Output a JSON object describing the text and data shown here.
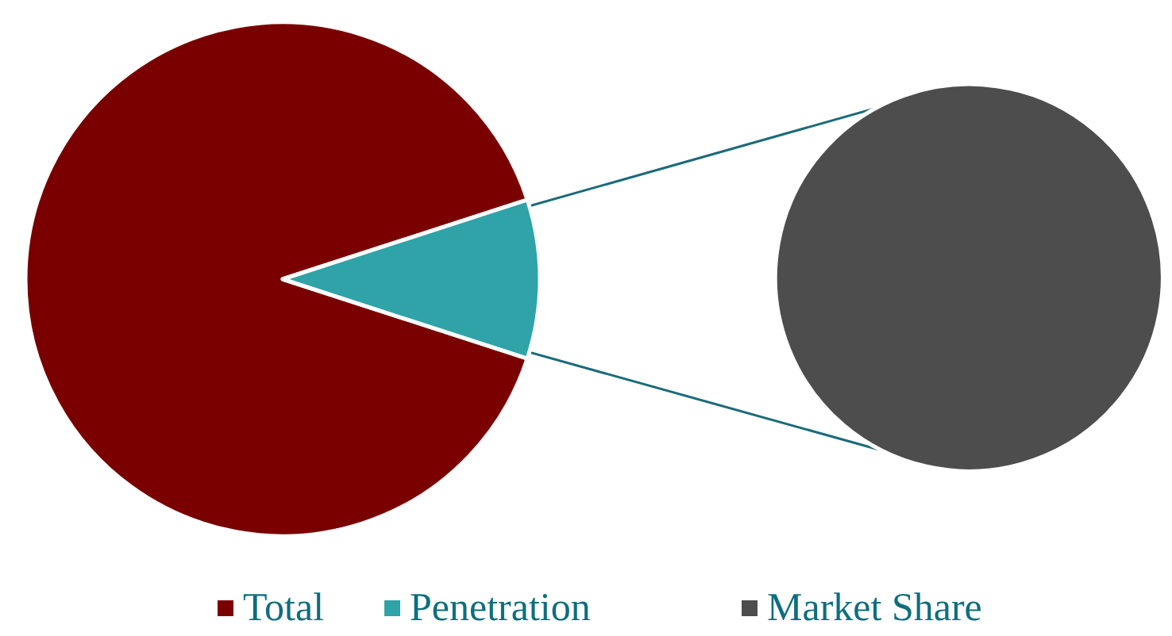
{
  "chart_data": [
    {
      "type": "pie",
      "categories": [
        "Total",
        "Penetration"
      ],
      "values": [
        90,
        10
      ],
      "colors": [
        "#7a0000",
        "#2fa3a8"
      ],
      "legend": "bottom"
    },
    {
      "type": "pie",
      "categories": [
        "Market Share"
      ],
      "values": [
        100
      ],
      "colors": [
        "#4d4d4d"
      ],
      "legend": "bottom"
    }
  ]
}
